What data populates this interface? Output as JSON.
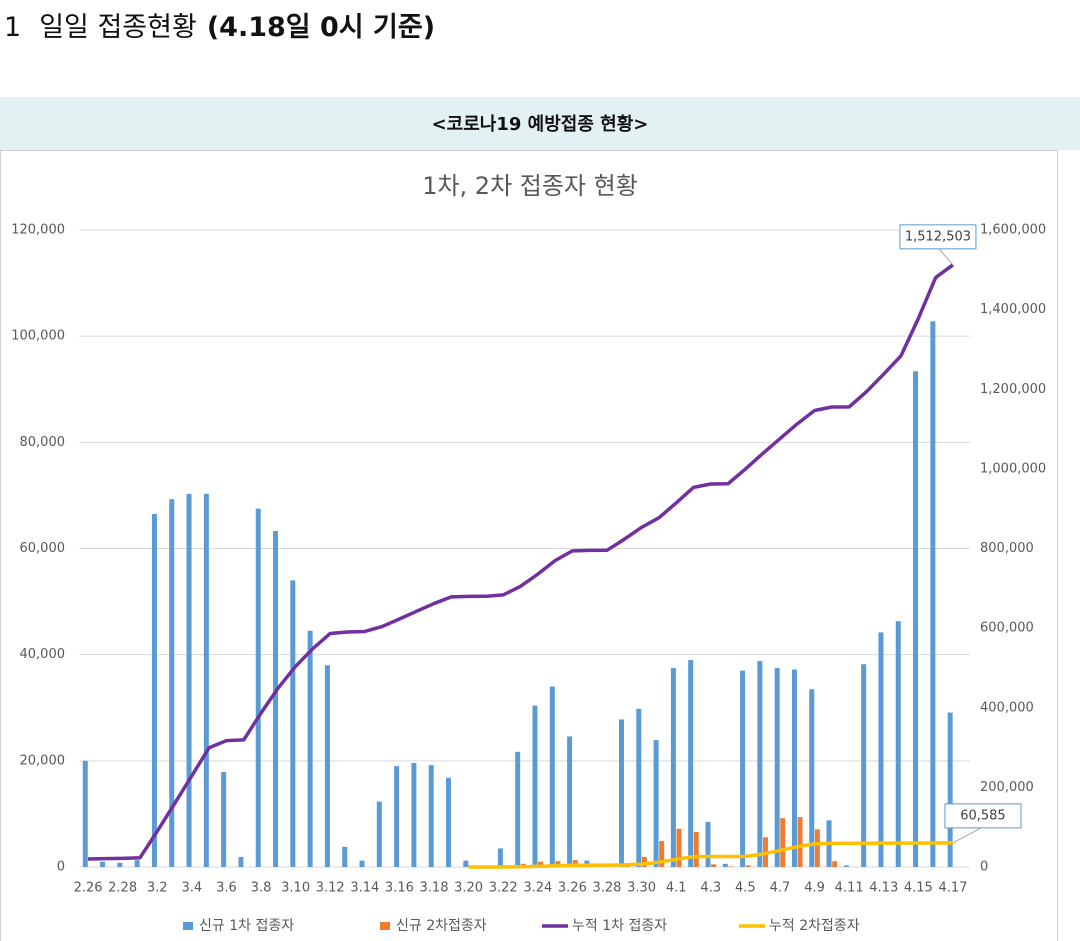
{
  "heading": {
    "number": "1",
    "title": "일일 접종현황",
    "basis": "(4.18일 0시 기준)"
  },
  "banner": "<코로나19 예방접종 현황>",
  "chart_data": {
    "type": "combo",
    "title": "1차, 2차 접종자 현황",
    "categories": [
      "2.26",
      null,
      "2.28",
      null,
      "3.2",
      null,
      "3.4",
      null,
      "3.6",
      null,
      "3.8",
      null,
      "3.10",
      null,
      "3.12",
      null,
      "3.14",
      null,
      "3.16",
      null,
      "3.18",
      null,
      "3.20",
      null,
      "3.22",
      null,
      "3.24",
      null,
      "3.26",
      null,
      "3.28",
      null,
      "3.30",
      null,
      "4.1",
      null,
      "4.3",
      null,
      "4.5",
      null,
      "4.7",
      null,
      "4.9",
      null,
      "4.11",
      null,
      "4.13",
      null,
      "4.15",
      null,
      "4.17"
    ],
    "series": [
      {
        "name": "신규 1차 접종자",
        "type": "bar",
        "color": "#5b9bd5",
        "values": [
          20000,
          1000,
          800,
          1300,
          66500,
          69300,
          70300,
          70300,
          17900,
          1900,
          67500,
          63300,
          54000,
          44500,
          38000,
          3800,
          1200,
          12300,
          19000,
          19600,
          19200,
          16800,
          1200,
          200,
          3500,
          21700,
          30400,
          34000,
          24600,
          1200,
          200,
          27800,
          29800,
          23900,
          37500,
          39000,
          8500,
          600,
          37000,
          38800,
          37500,
          37200,
          33500,
          8800,
          300,
          38200,
          44200,
          46300,
          93400,
          102800,
          29100
        ]
      },
      {
        "name": "신규 2차접종자",
        "type": "bar",
        "color": "#ed7d31",
        "values": [
          0,
          0,
          0,
          0,
          0,
          0,
          0,
          0,
          0,
          0,
          0,
          0,
          0,
          0,
          0,
          0,
          0,
          0,
          0,
          0,
          0,
          0,
          0,
          0,
          100,
          600,
          1000,
          1100,
          1300,
          600,
          100,
          500,
          1900,
          4900,
          7200,
          6600,
          500,
          100,
          300,
          5600,
          9200,
          9400,
          7100,
          1100,
          0,
          0,
          0,
          0,
          0,
          0,
          0
        ]
      },
      {
        "name": "누적 1차 접종자",
        "type": "line",
        "axis": "y2",
        "color": "#7030a0",
        "values": [
          20000,
          21000,
          21800,
          23100,
          89600,
          158900,
          229200,
          299500,
          317400,
          319300,
          386800,
          450100,
          504100,
          548600,
          586600,
          590400,
          591600,
          603900,
          622900,
          642500,
          661700,
          678500,
          679700,
          679900,
          683400,
          705100,
          735500,
          769500,
          794100,
          795300,
          795500,
          823300,
          853100,
          877000,
          914500,
          953500,
          962000,
          962600,
          999600,
          1038400,
          1075900,
          1113100,
          1146600,
          1155400,
          1155700,
          1193900,
          1238100,
          1284400,
          1377800,
          1480600,
          1512503
        ],
        "value_labels": [
          null,
          null,
          null,
          null,
          null,
          null,
          null,
          null,
          null,
          null,
          null,
          null,
          null,
          null,
          null,
          null,
          null,
          null,
          null,
          null,
          null,
          null,
          null,
          null,
          null,
          null,
          null,
          null,
          null,
          null,
          null,
          null,
          null,
          null,
          null,
          null,
          null,
          null,
          null,
          null,
          null,
          null,
          null,
          null,
          null,
          null,
          null,
          null,
          null,
          null,
          "1,512,503"
        ]
      },
      {
        "name": "누적 2차접종자",
        "type": "line",
        "axis": "y2",
        "color": "#ffc000",
        "values": [
          null,
          null,
          null,
          null,
          null,
          null,
          null,
          null,
          null,
          null,
          null,
          null,
          null,
          null,
          null,
          null,
          null,
          null,
          null,
          null,
          null,
          null,
          0,
          0,
          100,
          700,
          1700,
          2800,
          4100,
          4700,
          4800,
          5300,
          7200,
          12100,
          19300,
          25900,
          26400,
          26500,
          26800,
          32400,
          41600,
          51000,
          58100,
          59200,
          59500,
          59800,
          60000,
          60100,
          60200,
          60300,
          60585
        ],
        "value_labels": [
          null,
          null,
          null,
          null,
          null,
          null,
          null,
          null,
          null,
          null,
          null,
          null,
          null,
          null,
          null,
          null,
          null,
          null,
          null,
          null,
          null,
          null,
          null,
          null,
          null,
          null,
          null,
          null,
          null,
          null,
          null,
          null,
          null,
          null,
          null,
          null,
          null,
          null,
          null,
          null,
          null,
          null,
          null,
          null,
          null,
          null,
          null,
          null,
          null,
          null,
          "60,585"
        ]
      }
    ],
    "ylim": [
      0,
      120000
    ],
    "yticks": [
      0,
      {
        "value": 20000,
        "label": "20,000"
      },
      {
        "value": 40000,
        "label": "40,000"
      },
      {
        "value": 60000,
        "label": "60,000"
      },
      {
        "value": 80000,
        "label": "80,000"
      },
      {
        "value": 100000,
        "label": "100,000"
      },
      {
        "value": 120000,
        "label": "120,000"
      }
    ],
    "y2lim": [
      0,
      1600000
    ],
    "y2ticks": [
      0,
      {
        "value": 200000,
        "label": "200,000"
      },
      {
        "value": 400000,
        "label": "400,000"
      },
      {
        "value": 600000,
        "label": "600,000"
      },
      {
        "value": 800000,
        "label": "800,000"
      },
      {
        "value": 1000000,
        "label": "1,000,000"
      },
      {
        "value": 1200000,
        "label": "1,200,000"
      },
      {
        "value": 1400000,
        "label": "1,400,000"
      },
      {
        "value": 1600000,
        "label": "1,600,000"
      }
    ],
    "grid": true,
    "legend": "bottom"
  }
}
